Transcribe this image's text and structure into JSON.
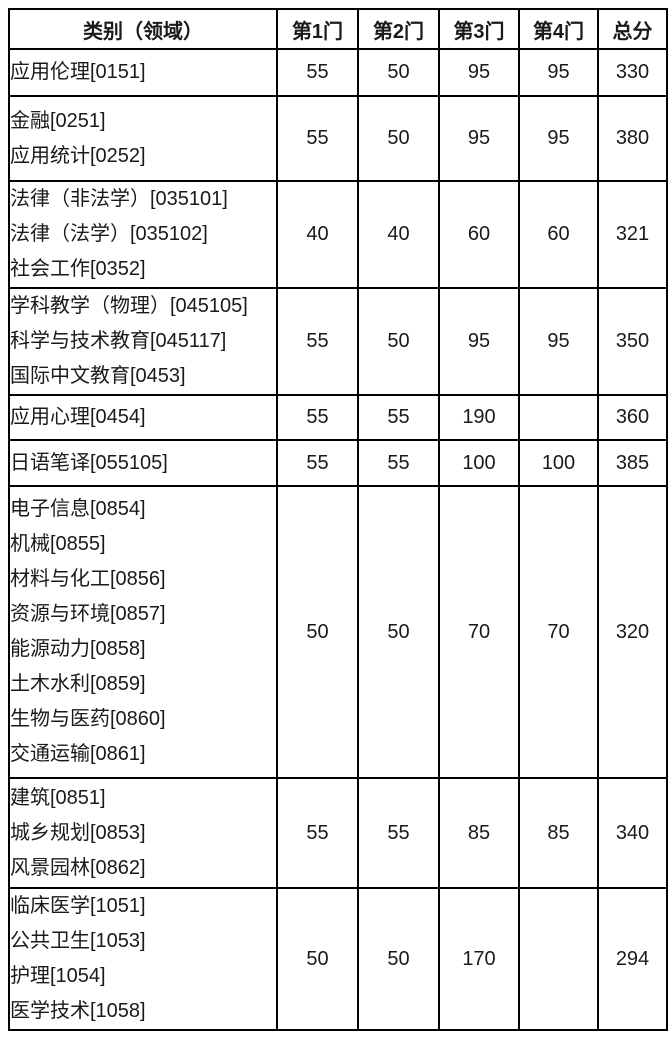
{
  "table": {
    "border_color": "#000000",
    "text_color": "#1a1a1a",
    "background_color": "#ffffff",
    "header": [
      "类别（领域）",
      "第1门",
      "第2门",
      "第3门",
      "第4门",
      "总分"
    ],
    "rows": [
      {
        "categories": [
          "应用伦理[0151]"
        ],
        "scores": [
          "55",
          "50",
          "95",
          "95",
          "330"
        ]
      },
      {
        "categories": [
          "金融[0251]",
          "应用统计[0252]"
        ],
        "scores": [
          "55",
          "50",
          "95",
          "95",
          "380"
        ]
      },
      {
        "categories": [
          "法律（非法学）[035101]",
          "法律（法学）[035102]",
          "社会工作[0352]"
        ],
        "scores": [
          "40",
          "40",
          "60",
          "60",
          "321"
        ]
      },
      {
        "categories": [
          "学科教学（物理）[045105]",
          "科学与技术教育[045117]",
          "国际中文教育[0453]"
        ],
        "scores": [
          "55",
          "50",
          "95",
          "95",
          "350"
        ]
      },
      {
        "categories": [
          "应用心理[0454]"
        ],
        "scores": [
          "55",
          "55",
          "190",
          "",
          "360"
        ]
      },
      {
        "categories": [
          "日语笔译[055105]"
        ],
        "scores": [
          "55",
          "55",
          "100",
          "100",
          "385"
        ]
      },
      {
        "categories": [
          "电子信息[0854]",
          "机械[0855]",
          "材料与化工[0856]",
          "资源与环境[0857]",
          "能源动力[0858]",
          "土木水利[0859]",
          "生物与医药[0860]",
          "交通运输[0861]"
        ],
        "scores": [
          "50",
          "50",
          "70",
          "70",
          "320"
        ]
      },
      {
        "categories": [
          "建筑[0851]",
          "城乡规划[0853]",
          "风景园林[0862]"
        ],
        "scores": [
          "55",
          "55",
          "85",
          "85",
          "340"
        ]
      },
      {
        "categories": [
          "临床医学[1051]",
          "公共卫生[1053]",
          "护理[1054]",
          "医学技术[1058]"
        ],
        "scores": [
          "50",
          "50",
          "170",
          "",
          "294"
        ]
      }
    ]
  }
}
